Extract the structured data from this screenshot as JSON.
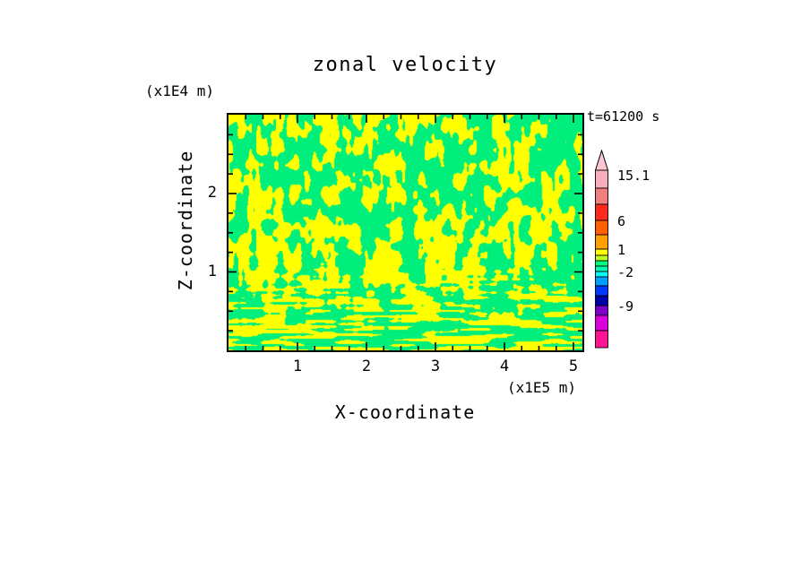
{
  "chart_data": {
    "type": "heatmap",
    "title": "zonal velocity",
    "time_label": "t=61200 s",
    "xlabel": "X-coordinate",
    "ylabel": "Z-coordinate",
    "x_unit_label": "(x1E5 m)",
    "y_unit_label": "(x1E4 m)",
    "xlim": [
      0,
      5.13
    ],
    "ylim": [
      0,
      3.0
    ],
    "x_ticks": [
      1,
      2,
      3,
      4,
      5
    ],
    "y_ticks": [
      1,
      2
    ],
    "x_minor_step": 0.25,
    "y_minor_step": 0.25,
    "grid": false,
    "legend_position": "right",
    "field": {
      "description": "Turbulent two-level zonal-velocity field: irregular interleaved patches of yellow (values ~2 to 6) and spring green (values ~-2 to 1), with vertically elongated plumes in the interior and fine horizontal striations near the lower boundary.",
      "low_color": "#00ef7c",
      "high_color": "#ffff00",
      "low_value_range": [
        -2,
        1
      ],
      "high_value_range": [
        2,
        6
      ],
      "noise_seed": 20240613
    },
    "colorbar": {
      "labels": [
        {
          "text": "15.1",
          "dy": 6
        },
        {
          "text": "6",
          "dy": 57
        },
        {
          "text": "1",
          "dy": 89
        },
        {
          "text": "-2",
          "dy": 114
        },
        {
          "text": "-9",
          "dy": 152
        }
      ],
      "arrow_color": "#f9c8d2",
      "bands": [
        {
          "color": "#f6aebe",
          "h": 20
        },
        {
          "color": "#f0807e",
          "h": 18
        },
        {
          "color": "#ff2a1e",
          "h": 18
        },
        {
          "color": "#ff5f00",
          "h": 16
        },
        {
          "color": "#ffa000",
          "h": 16
        },
        {
          "color": "#ffff00",
          "h": 7
        },
        {
          "color": "#c0ff20",
          "h": 6
        },
        {
          "color": "#00ff7f",
          "h": 6
        },
        {
          "color": "#00ffb4",
          "h": 6
        },
        {
          "color": "#00ffff",
          "h": 6
        },
        {
          "color": "#00a0ff",
          "h": 10
        },
        {
          "color": "#0038ff",
          "h": 11
        },
        {
          "color": "#0000a8",
          "h": 11
        },
        {
          "color": "#7d00c8",
          "h": 11
        },
        {
          "color": "#dc00dc",
          "h": 17
        },
        {
          "color": "#ff1493",
          "h": 19
        }
      ]
    }
  }
}
